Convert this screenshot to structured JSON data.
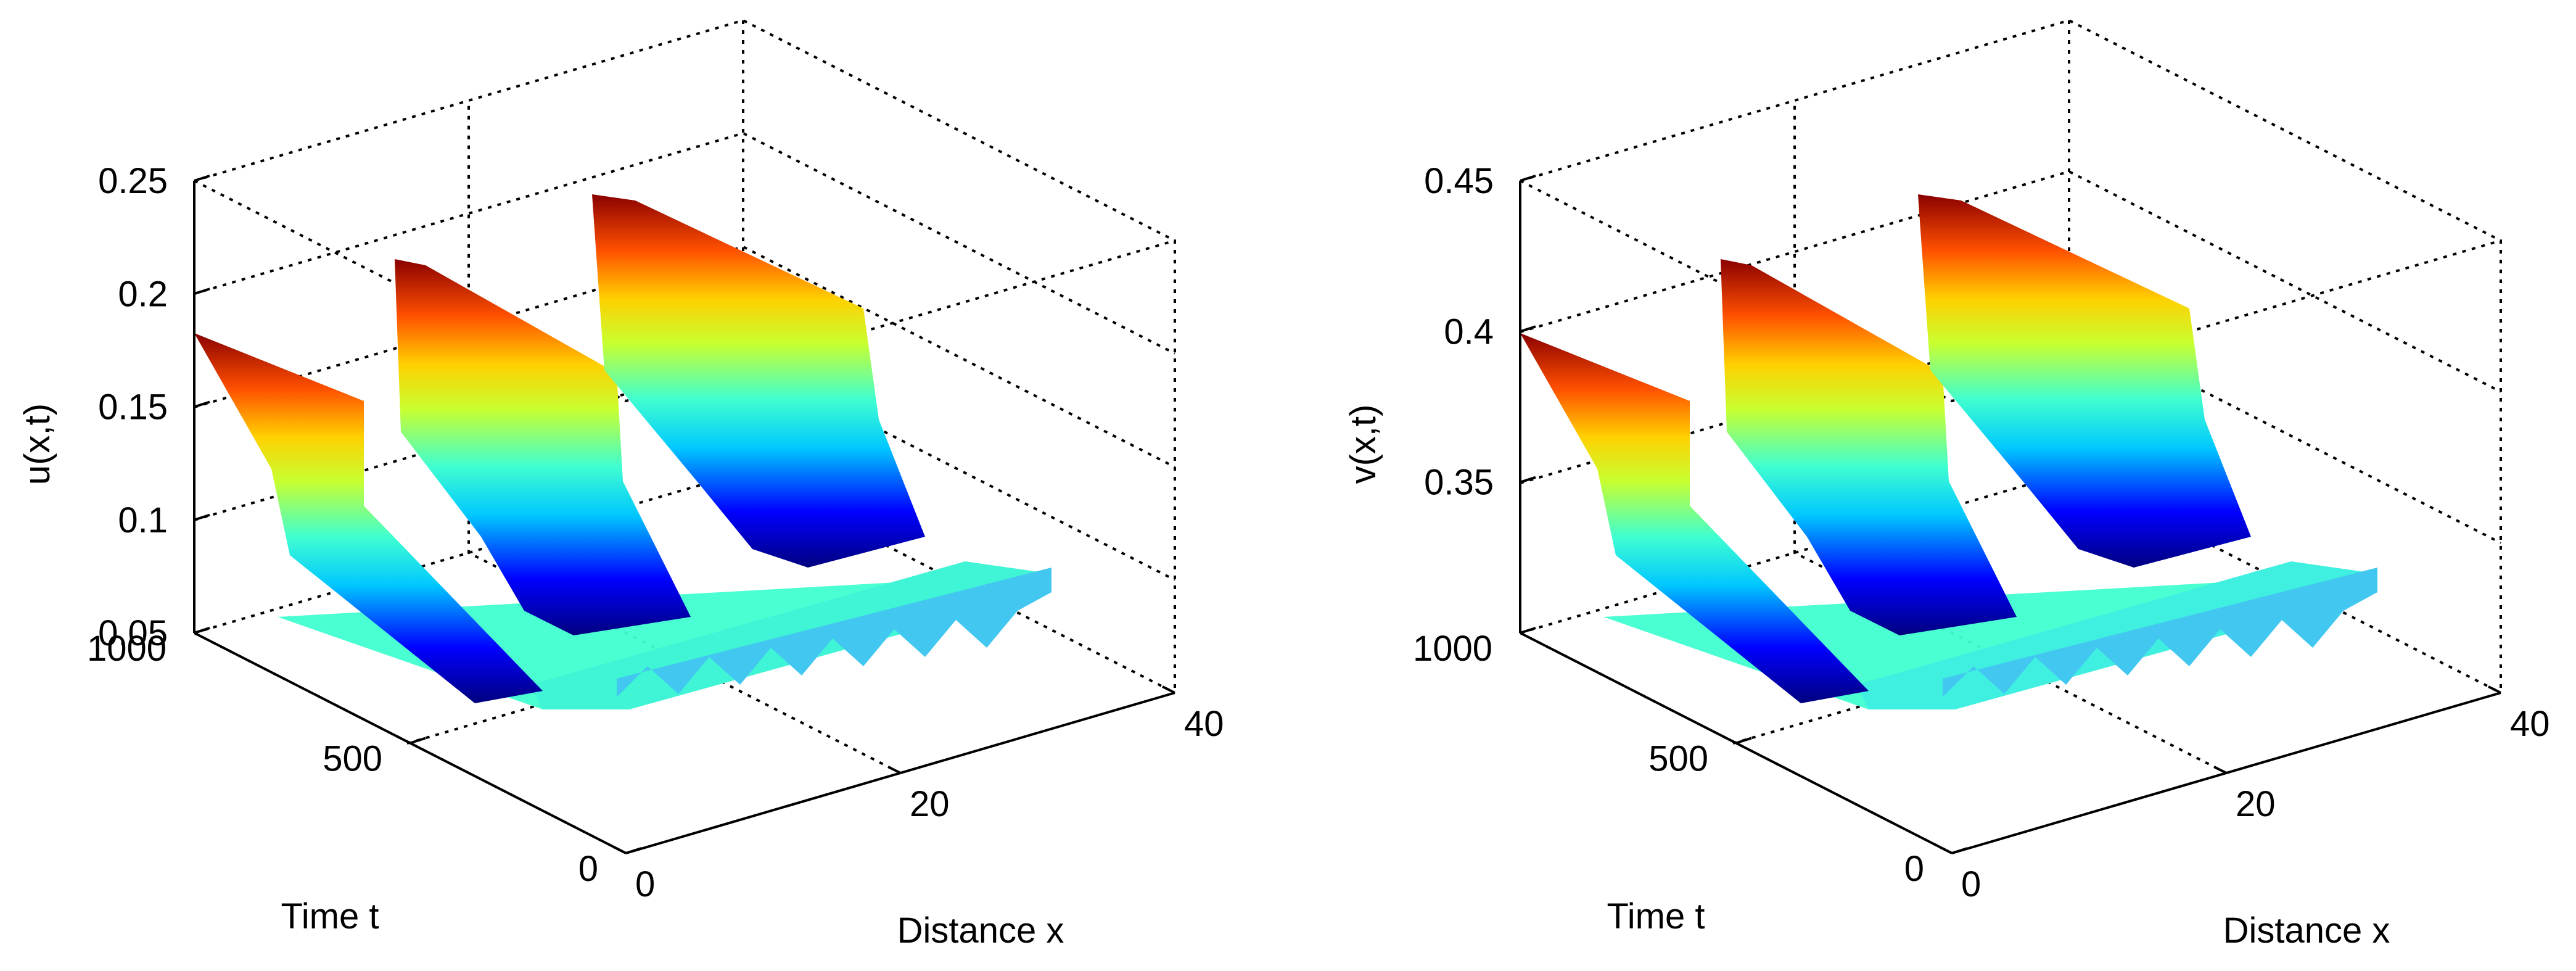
{
  "chart_data": [
    {
      "type": "surface",
      "zlabel": "u(x,t)",
      "xlabel": "Distance x",
      "ylabel": "Time t",
      "zlim": [
        0.05,
        0.25
      ],
      "xlim": [
        0,
        40
      ],
      "tlim": [
        0,
        1000
      ],
      "z_ticks": [
        "0.05",
        "0.1",
        "0.15",
        "0.2",
        "0.25"
      ],
      "x_ticks": [
        "0",
        "20",
        "40"
      ],
      "t_ticks": [
        "0",
        "500",
        "1000"
      ],
      "surface": {
        "description_values": {
          "initial_oscillation_min": 0.05,
          "baseline": 0.095,
          "stripe_peak": 0.23,
          "stripe_trough": 0.06
        },
        "stripes_x_centers": [
          5,
          17,
          29
        ],
        "colormap": "jet"
      }
    },
    {
      "type": "surface",
      "zlabel": "v(x,t)",
      "xlabel": "Distance x",
      "ylabel": "Time t",
      "zlim": [
        0.3,
        0.45
      ],
      "xlim": [
        0,
        40
      ],
      "tlim": [
        0,
        1000
      ],
      "z_ticks": [
        "0.35",
        "0.4",
        "0.45"
      ],
      "x_ticks": [
        "0",
        "20",
        "40"
      ],
      "t_ticks": [
        "0",
        "500",
        "1000"
      ],
      "surface": {
        "description_values": {
          "baseline": 0.34,
          "stripe_peak": 0.43,
          "stripe_trough": 0.31
        },
        "stripes_x_centers": [
          5,
          17,
          29
        ],
        "colormap": "jet"
      }
    }
  ]
}
